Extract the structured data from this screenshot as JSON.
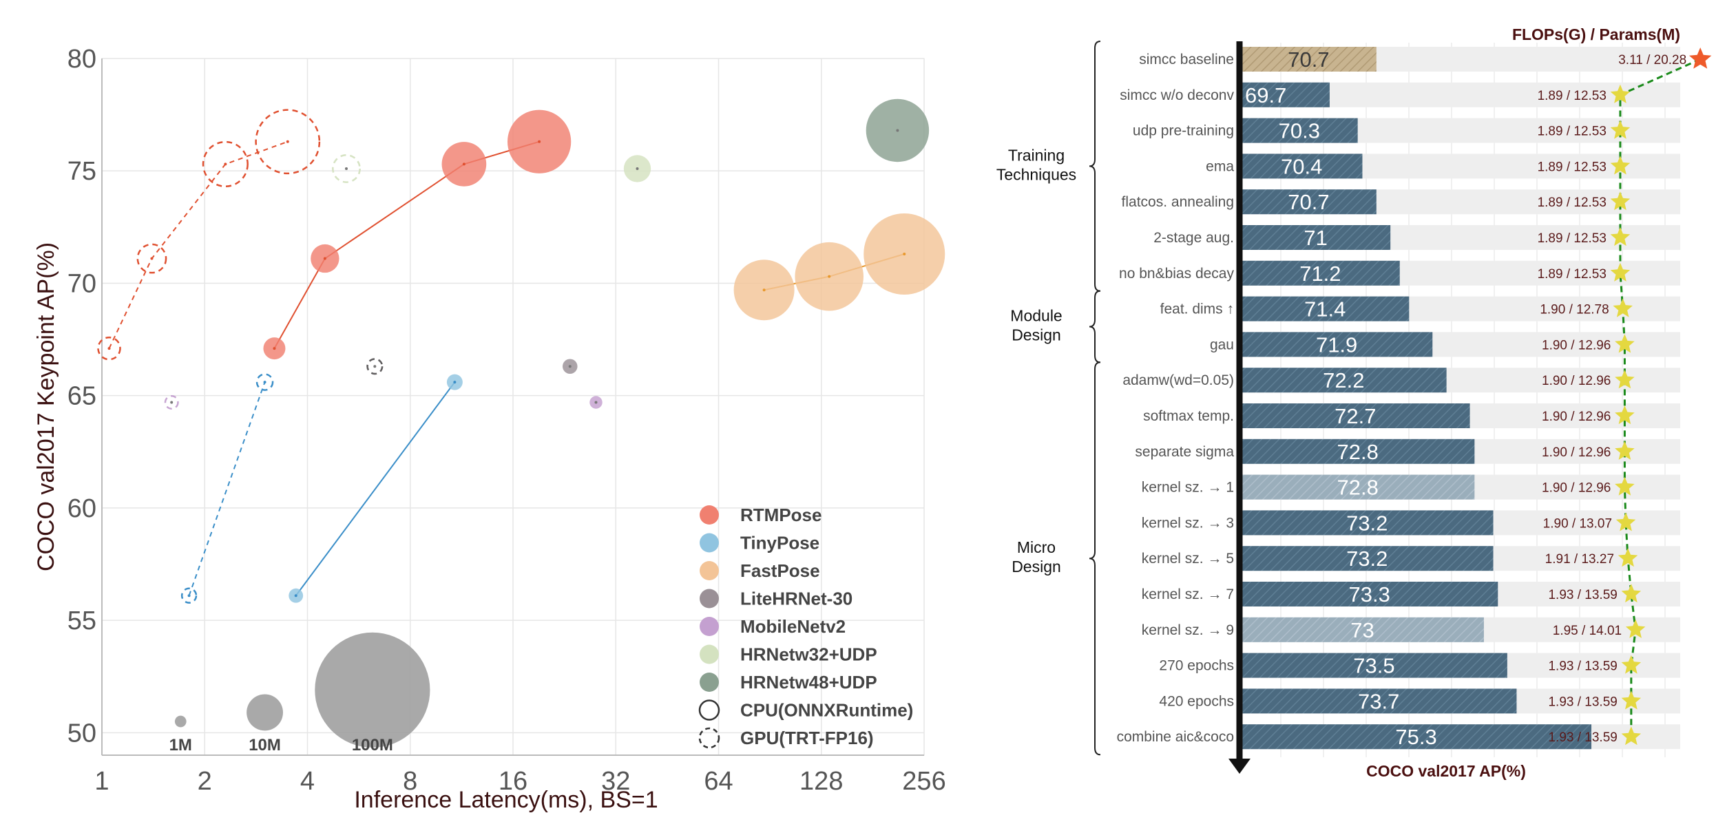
{
  "chart_data": [
    {
      "type": "scatter",
      "xlabel": "Inference Latency(ms), BS=1",
      "ylabel": "COCO val2017 Keypoint AP(%)",
      "x_scale": "log2",
      "xlim": [
        1,
        256
      ],
      "ylim": [
        49,
        80
      ],
      "x_ticks": [
        "1",
        "2",
        "4",
        "8",
        "16",
        "32",
        "64",
        "128",
        "256"
      ],
      "x_tick_values": [
        1,
        2,
        4,
        8,
        16,
        32,
        64,
        128,
        256
      ],
      "y_ticks": [
        "50",
        "55",
        "60",
        "65",
        "70",
        "75",
        "80"
      ],
      "y_tick_values": [
        50,
        55,
        60,
        65,
        70,
        75,
        80
      ],
      "grid": true,
      "legend_position": "bottom-right",
      "series": [
        {
          "name": "RTMPose",
          "color": "#f08070",
          "line": "#e05030",
          "backend": "GPU(TRT-FP16)",
          "x": [
            1.05,
            1.4,
            2.3,
            3.5
          ],
          "y": [
            67.1,
            71.1,
            75.3,
            76.3
          ],
          "params_m": [
            3.3,
            5.5,
            13.5,
            27.5
          ]
        },
        {
          "name": "RTMPose",
          "color": "#f08070",
          "line": "#e05030",
          "backend": "CPU(ONNXRuntime)",
          "x": [
            3.2,
            4.5,
            11.5,
            19.1
          ],
          "y": [
            67.1,
            71.1,
            75.3,
            76.3
          ],
          "params_m": [
            3.3,
            5.5,
            13.5,
            27.5
          ]
        },
        {
          "name": "TinyPose",
          "color": "#90c4e0",
          "line": "#3a8ec8",
          "backend": "GPU(TRT-FP16)",
          "x": [
            1.8,
            3.0
          ],
          "y": [
            56.1,
            65.6
          ],
          "params_m": [
            1.4,
            1.7
          ]
        },
        {
          "name": "TinyPose",
          "color": "#90c4e0",
          "line": "#3a8ec8",
          "backend": "CPU(ONNXRuntime)",
          "x": [
            3.7,
            10.8
          ],
          "y": [
            56.1,
            65.6
          ],
          "params_m": [
            1.4,
            1.7
          ]
        },
        {
          "name": "FastPose",
          "color": "#f3c497",
          "line": "#e8992d",
          "backend": "CPU(ONNXRuntime)",
          "x": [
            87,
            135,
            224
          ],
          "y": [
            69.7,
            70.3,
            71.3
          ],
          "params_m": [
            25,
            32,
            45
          ]
        },
        {
          "name": "LiteHRNet-30",
          "color": "#9a9096",
          "backend": "CPU(ONNXRuntime)",
          "x": [
            23.5
          ],
          "y": [
            66.3
          ],
          "params_m": [
            1.5
          ]
        },
        {
          "name": "LiteHRNet-30",
          "color": "#9a9096",
          "backend": "GPU(TRT-FP16)",
          "x": [
            6.3
          ],
          "y": [
            66.3
          ],
          "params_m": [
            1.5
          ]
        },
        {
          "name": "MobileNetv2",
          "color": "#c4a0d0",
          "backend": "CPU(ONNXRuntime)",
          "x": [
            28.0
          ],
          "y": [
            64.7
          ],
          "params_m": [
            1.1
          ]
        },
        {
          "name": "MobileNetv2",
          "color": "#c4a0d0",
          "backend": "GPU(TRT-FP16)",
          "x": [
            1.6
          ],
          "y": [
            64.7
          ],
          "params_m": [
            1.1
          ]
        },
        {
          "name": "HRNetw32+UDP",
          "color": "#d4e2c0",
          "backend": "CPU(ONNXRuntime)",
          "x": [
            37.0
          ],
          "y": [
            75.1
          ],
          "params_m": [
            5.0
          ]
        },
        {
          "name": "HRNetw32+UDP",
          "color": "#d4e2c0",
          "backend": "GPU(TRT-FP16)",
          "x": [
            5.2
          ],
          "y": [
            75.1
          ],
          "params_m": [
            5.0
          ]
        },
        {
          "name": "HRNetw48+UDP",
          "color": "#8aa090",
          "backend": "CPU(ONNXRuntime)",
          "x": [
            214
          ],
          "y": [
            76.8
          ],
          "params_m": [
            27
          ]
        }
      ],
      "size_legend": [
        {
          "label": "1M",
          "x": 1.7,
          "y": 50.5,
          "params_m": 1
        },
        {
          "label": "10M",
          "x": 3.0,
          "y": 50.9,
          "params_m": 10
        },
        {
          "label": "100M",
          "x": 6.2,
          "y": 51.9,
          "params_m": 100
        }
      ],
      "legend": [
        {
          "label": "RTMPose",
          "color": "#f08070",
          "kind": "filled"
        },
        {
          "label": "TinyPose",
          "color": "#90c4e0",
          "kind": "filled"
        },
        {
          "label": "FastPose",
          "color": "#f3c497",
          "kind": "filled"
        },
        {
          "label": "LiteHRNet-30",
          "color": "#9a9096",
          "kind": "filled"
        },
        {
          "label": "MobileNetv2",
          "color": "#c4a0d0",
          "kind": "filled"
        },
        {
          "label": "HRNetw32+UDP",
          "color": "#d4e2c0",
          "kind": "filled"
        },
        {
          "label": "HRNetw48+UDP",
          "color": "#8aa090",
          "kind": "filled"
        },
        {
          "label": "CPU(ONNXRuntime)",
          "color": "#333333",
          "kind": "solid-ring"
        },
        {
          "label": "GPU(TRT-FP16)",
          "color": "#333333",
          "kind": "dashed-ring"
        }
      ]
    },
    {
      "type": "bar",
      "orientation": "horizontal",
      "xlabel": "COCO val2017 AP(%)",
      "secondary_title": "FLOPs(G) / Params(M)",
      "xlim": [
        67.8,
        77.2
      ],
      "categories": [
        "simcc baseline",
        "simcc w/o deconv",
        "udp pre-training",
        "ema",
        "flatcos. annealing",
        "2-stage aug.",
        "no bn&bias decay",
        "feat. dims ↑",
        "gau",
        "adamw(wd=0.05)",
        "softmax temp.",
        "separate sigma",
        "kernel sz. → 1",
        "kernel sz. → 3",
        "kernel sz. → 5",
        "kernel sz. → 7",
        "kernel sz. → 9",
        "270 epochs",
        "420 epochs",
        "combine aic&coco"
      ],
      "values": [
        70.7,
        69.7,
        70.3,
        70.4,
        70.7,
        71,
        71.2,
        71.4,
        71.9,
        72.2,
        72.7,
        72.8,
        72.8,
        73.2,
        73.2,
        73.3,
        73,
        73.5,
        73.7,
        75.3
      ],
      "value_labels": [
        "70.7",
        "69.7",
        "70.3",
        "70.4",
        "70.7",
        "71",
        "71.2",
        "71.4",
        "71.9",
        "72.2",
        "72.7",
        "72.8",
        "72.8",
        "73.2",
        "73.2",
        "73.3",
        "73",
        "73.5",
        "73.7",
        "75.3"
      ],
      "bar_style": [
        "baseline",
        "main",
        "main",
        "main",
        "main",
        "main",
        "main",
        "main",
        "main",
        "main",
        "main",
        "main",
        "faded",
        "main",
        "main",
        "main",
        "faded",
        "main",
        "main",
        "main"
      ],
      "flops_params": [
        "3.11 / 20.28",
        "1.89 / 12.53",
        "1.89 / 12.53",
        "1.89 / 12.53",
        "1.89 / 12.53",
        "1.89 / 12.53",
        "1.89 / 12.53",
        "1.90 / 12.78",
        "1.90 / 12.96",
        "1.90 / 12.96",
        "1.90 / 12.96",
        "1.90 / 12.96",
        "1.90 / 12.96",
        "1.90 / 13.07",
        "1.91 / 13.27",
        "1.93 / 13.59",
        "1.95 / 14.01",
        "1.93 / 13.59",
        "1.93 / 13.59",
        "1.93 / 13.59"
      ],
      "params_m": [
        20.28,
        12.53,
        12.53,
        12.53,
        12.53,
        12.53,
        12.53,
        12.78,
        12.96,
        12.96,
        12.96,
        12.96,
        12.96,
        13.07,
        13.27,
        13.59,
        14.01,
        13.59,
        13.59,
        13.59
      ],
      "params_range": [
        9.0,
        21.0
      ],
      "groups": [
        {
          "label": [
            "Training",
            "Techniques"
          ],
          "from": 0,
          "to": 6
        },
        {
          "label": [
            "Module",
            "Design"
          ],
          "from": 7,
          "to": 8
        },
        {
          "label": [
            "Micro",
            "Design"
          ],
          "from": 9,
          "to": 19
        }
      ],
      "colors": {
        "main": "#4b6a80",
        "faded": "#9aaebb",
        "baseline": "#c8b490",
        "track": "#eeeeee",
        "star": "#e4d840",
        "star_first": "#ee5a2a",
        "trend": "#1a8a1a"
      }
    }
  ]
}
